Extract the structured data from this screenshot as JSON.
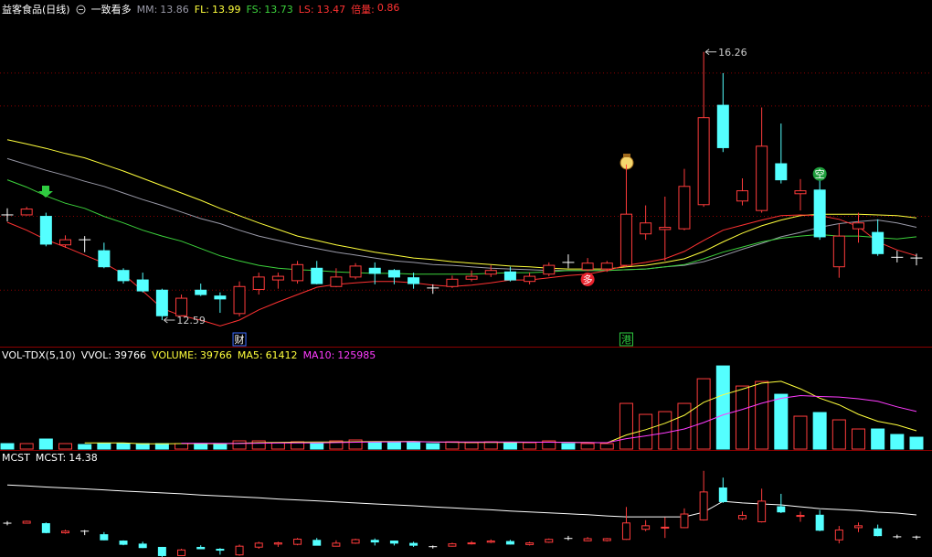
{
  "chart_data": [
    {
      "type": "candlestick",
      "title": "益客食品(日线)",
      "subtitle": "一致看多",
      "ylim": [
        12.24,
        16.72
      ],
      "open": [
        14.03,
        14.03,
        14.01,
        13.62,
        13.69,
        13.54,
        13.27,
        13.14,
        13.0,
        12.65,
        13.0,
        12.92,
        12.68,
        13.01,
        13.14,
        13.13,
        13.3,
        13.05,
        13.18,
        13.3,
        13.27,
        13.17,
        13.03,
        13.05,
        13.15,
        13.22,
        13.25,
        13.12,
        13.22,
        13.38,
        13.28,
        13.29,
        13.34,
        13.77,
        13.83,
        13.84,
        14.17,
        15.53,
        14.22,
        14.09,
        14.73,
        14.32,
        14.37,
        13.32,
        13.84,
        13.79,
        13.45,
        13.44
      ],
      "high": [
        14.12,
        14.14,
        14.06,
        13.75,
        13.74,
        13.65,
        13.3,
        13.24,
        13.02,
        12.94,
        13.09,
        12.97,
        13.12,
        13.24,
        13.24,
        13.4,
        13.4,
        13.3,
        13.37,
        13.38,
        13.29,
        13.24,
        13.08,
        13.2,
        13.27,
        13.34,
        13.32,
        13.24,
        13.38,
        13.49,
        13.44,
        13.4,
        14.72,
        14.16,
        14.28,
        14.66,
        16.26,
        15.97,
        14.53,
        15.5,
        15.28,
        14.52,
        14.59,
        13.91,
        14.06,
        13.97,
        13.54,
        13.5
      ],
      "low": [
        13.94,
        14.02,
        13.6,
        13.58,
        13.52,
        13.3,
        13.09,
        12.97,
        12.59,
        12.64,
        12.92,
        12.69,
        12.64,
        12.94,
        13.02,
        13.09,
        13.08,
        13.04,
        13.15,
        13.08,
        13.08,
        13.02,
        12.95,
        13.03,
        13.12,
        13.18,
        13.12,
        13.08,
        13.19,
        13.3,
        13.26,
        13.25,
        13.32,
        13.69,
        13.4,
        13.82,
        14.14,
        14.89,
        14.16,
        14.06,
        14.46,
        14.09,
        13.69,
        13.17,
        13.65,
        13.47,
        13.38,
        13.34
      ],
      "close": [
        14.03,
        14.11,
        13.63,
        13.69,
        13.69,
        13.32,
        13.13,
        12.99,
        12.65,
        12.89,
        12.94,
        12.88,
        13.05,
        13.18,
        13.19,
        13.35,
        13.09,
        13.18,
        13.33,
        13.23,
        13.18,
        13.09,
        13.03,
        13.15,
        13.19,
        13.27,
        13.14,
        13.19,
        13.34,
        13.38,
        13.37,
        13.37,
        14.04,
        13.92,
        13.86,
        14.42,
        15.36,
        14.95,
        14.36,
        14.97,
        14.51,
        14.36,
        13.73,
        13.74,
        13.92,
        13.5,
        13.45,
        13.44
      ],
      "up_color": "#ff3c3c",
      "down_color": "#54ffff",
      "doji_color": "#ffffff",
      "gridlines": [
        15.97,
        15.52,
        14.01,
        13.0
      ],
      "series": [
        {
          "name": "MM:",
          "color": "#9a9aa8",
          "values": [
            14.8,
            14.72,
            14.64,
            14.57,
            14.49,
            14.42,
            14.33,
            14.24,
            14.16,
            14.07,
            13.98,
            13.91,
            13.82,
            13.74,
            13.68,
            13.62,
            13.57,
            13.52,
            13.48,
            13.44,
            13.4,
            13.38,
            13.35,
            13.34,
            13.32,
            13.3,
            13.29,
            13.28,
            13.27,
            13.27,
            13.27,
            13.27,
            13.28,
            13.29,
            13.32,
            13.34,
            13.39,
            13.47,
            13.56,
            13.64,
            13.73,
            13.79,
            13.86,
            13.91,
            13.94,
            13.96,
            13.92,
            13.86
          ]
        },
        {
          "name": "FL:",
          "color": "#ffff3c",
          "values": [
            15.06,
            15.0,
            14.94,
            14.87,
            14.81,
            14.72,
            14.63,
            14.53,
            14.43,
            14.33,
            14.23,
            14.12,
            14.02,
            13.92,
            13.83,
            13.74,
            13.68,
            13.62,
            13.57,
            13.52,
            13.48,
            13.44,
            13.42,
            13.39,
            13.37,
            13.35,
            13.33,
            13.32,
            13.3,
            13.29,
            13.29,
            13.29,
            13.32,
            13.34,
            13.38,
            13.43,
            13.53,
            13.66,
            13.78,
            13.88,
            13.96,
            14.02,
            14.04,
            14.04,
            14.04,
            14.03,
            14.02,
            13.99
          ]
        },
        {
          "name": "FS:",
          "color": "#3cd23c",
          "values": [
            14.51,
            14.41,
            14.29,
            14.19,
            14.12,
            14.01,
            13.92,
            13.82,
            13.74,
            13.67,
            13.57,
            13.47,
            13.4,
            13.34,
            13.3,
            13.28,
            13.27,
            13.25,
            13.24,
            13.23,
            13.23,
            13.22,
            13.22,
            13.22,
            13.22,
            13.23,
            13.24,
            13.24,
            13.25,
            13.27,
            13.27,
            13.27,
            13.28,
            13.29,
            13.32,
            13.35,
            13.43,
            13.52,
            13.59,
            13.66,
            13.71,
            13.74,
            13.76,
            13.74,
            13.74,
            13.72,
            13.7,
            13.73
          ]
        },
        {
          "name": "LS:",
          "color": "#ff3232",
          "values": [
            13.93,
            13.82,
            13.69,
            13.59,
            13.48,
            13.37,
            13.22,
            12.99,
            12.75,
            12.65,
            12.59,
            12.51,
            12.59,
            12.73,
            12.84,
            12.94,
            13.04,
            13.08,
            13.1,
            13.12,
            13.12,
            13.1,
            13.07,
            13.05,
            13.07,
            13.1,
            13.14,
            13.14,
            13.17,
            13.2,
            13.22,
            13.27,
            13.34,
            13.38,
            13.43,
            13.53,
            13.68,
            13.82,
            13.89,
            13.96,
            14.02,
            14.03,
            14.02,
            13.97,
            13.87,
            13.66,
            13.55,
            13.47
          ]
        }
      ],
      "extra": {
        "name": "倍量:",
        "value": 0.86,
        "color": "#ff3232"
      },
      "signals": [
        null,
        null,
        null,
        null,
        null,
        null,
        null,
        null,
        null,
        null,
        null,
        null,
        null,
        null,
        null,
        null,
        null,
        null,
        null,
        null,
        null,
        null,
        null,
        null,
        null,
        null,
        null,
        null,
        null,
        null,
        {
          "text": "多",
          "color": "#e8232d"
        },
        null,
        null,
        null,
        null,
        null,
        null,
        null,
        null,
        null,
        null,
        null,
        {
          "text": "空",
          "color": "#1e9e3c"
        },
        null,
        null,
        null,
        null,
        null
      ],
      "news": [
        null,
        null,
        null,
        null,
        null,
        null,
        null,
        null,
        null,
        null,
        null,
        null,
        {
          "text": "财",
          "color": "#3d6cff"
        },
        null,
        null,
        null,
        null,
        null,
        null,
        null,
        null,
        null,
        null,
        null,
        null,
        null,
        null,
        null,
        null,
        null,
        null,
        null,
        {
          "text": "港",
          "color": "#2ecc40"
        },
        null,
        null,
        null,
        null,
        null,
        null,
        null,
        null,
        null,
        null,
        null,
        null,
        null,
        null,
        null
      ]
    },
    {
      "type": "bar",
      "title": "VOL-TDX(5,10)",
      "ylim": [
        0,
        340000
      ],
      "values": [
        18360,
        18360,
        33660,
        18360,
        15300,
        18360,
        18360,
        18360,
        18360,
        18360,
        18360,
        15300,
        27540,
        27540,
        21420,
        24480,
        18360,
        27540,
        30600,
        24480,
        24480,
        21420,
        18360,
        24480,
        21420,
        24480,
        21420,
        21420,
        27540,
        18360,
        18360,
        18360,
        153000,
        116280,
        125460,
        153000,
        235620,
        278460,
        211140,
        226440,
        183600,
        110160,
        122400,
        97920,
        67320,
        67320,
        48960,
        39766
      ],
      "indicators": [
        {
          "name": "VVOL:",
          "color": "#ffffff"
        },
        {
          "name": "VOLUME:",
          "color": "#ffff3c"
        }
      ],
      "series": [
        {
          "name": "MA5:",
          "color": "#ffff3c",
          "values": [
            null,
            null,
            null,
            null,
            20800,
            20800,
            20800,
            17750,
            17750,
            18360,
            18360,
            17750,
            19580,
            21420,
            22030,
            23260,
            23870,
            23870,
            24480,
            25090,
            25090,
            25700,
            23870,
            22640,
            22030,
            22030,
            22030,
            22640,
            23260,
            22640,
            22030,
            20810,
            47120,
            64870,
            86290,
            113220,
            156670,
            181760,
            200740,
            220930,
            227050,
            201960,
            170750,
            148100,
            116280,
            93020,
            80780,
            61412
          ]
        },
        {
          "name": "MA10:",
          "color": "#ff3cff",
          "values": [
            null,
            null,
            null,
            null,
            null,
            null,
            null,
            null,
            null,
            19580,
            19580,
            19280,
            18670,
            19580,
            20200,
            20810,
            20810,
            21730,
            22950,
            23560,
            24170,
            24790,
            23870,
            23560,
            23560,
            23560,
            23870,
            23260,
            22950,
            22340,
            21730,
            21420,
            34880,
            44060,
            54470,
            67320,
            88740,
            114440,
            132800,
            153610,
            170140,
            179320,
            176260,
            174420,
            168610,
            160040,
            141370,
            125985
          ]
        }
      ]
    },
    {
      "type": "line",
      "title": "MCST",
      "ylim": [
        12.59,
        17.03
      ],
      "series": [
        {
          "name": "MCST:",
          "color": "#ffffff",
          "values": [
            15.66,
            15.62,
            15.57,
            15.53,
            15.49,
            15.45,
            15.4,
            15.36,
            15.32,
            15.28,
            15.23,
            15.19,
            15.15,
            15.11,
            15.06,
            15.02,
            14.98,
            14.94,
            14.89,
            14.85,
            14.81,
            14.77,
            14.72,
            14.68,
            14.64,
            14.6,
            14.55,
            14.51,
            14.47,
            14.43,
            14.39,
            14.34,
            14.3,
            14.3,
            14.3,
            14.3,
            14.5,
            14.96,
            14.89,
            14.85,
            14.81,
            14.73,
            14.65,
            14.61,
            14.57,
            14.5,
            14.46,
            14.38
          ]
        }
      ]
    }
  ]
}
